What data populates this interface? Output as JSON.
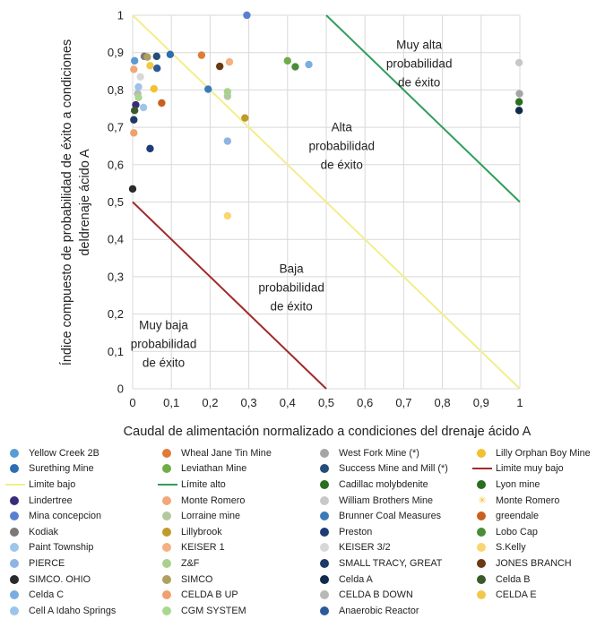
{
  "chart_data": {
    "type": "scatter",
    "title": "",
    "xlabel": "Caudal de alimentación normalizado a condiciones del drenaje ácido A",
    "ylabel_lines": [
      "Índice compuesto de probabilidad de éxito a condiciones",
      "deldrenaje ácido A"
    ],
    "xlim": [
      0,
      1
    ],
    "ylim": [
      0,
      1
    ],
    "xticks": [
      "0",
      "0,1",
      "0,2",
      "0,3",
      "0,4",
      "0,5",
      "0,6",
      "0,7",
      "0,8",
      "0,9",
      "1"
    ],
    "yticks": [
      "0",
      "0,1",
      "0,2",
      "0,3",
      "0,4",
      "0,5",
      "0,6",
      "0,7",
      "0,8",
      "0,9",
      "1"
    ],
    "grid": true,
    "legend_position": "bottom",
    "regions": [
      {
        "lines": [
          "Muy alta",
          "probabilidad",
          "de éxito"
        ],
        "x": 0.74,
        "y": 0.91
      },
      {
        "lines": [
          "Alta",
          "probabilidad",
          "de éxito"
        ],
        "x": 0.54,
        "y": 0.69
      },
      {
        "lines": [
          "Baja",
          "probabilidad",
          "de éxito"
        ],
        "x": 0.41,
        "y": 0.31
      },
      {
        "lines": [
          "Muy baja",
          "probabilidad",
          "de éxito"
        ],
        "x": 0.08,
        "y": 0.16
      }
    ],
    "lines": [
      {
        "name": "Limite bajo",
        "color": "#f2ee8c",
        "x": [
          0,
          1
        ],
        "y": [
          1,
          0
        ]
      },
      {
        "name": "Límite alto",
        "color": "#2e9e5a",
        "x": [
          0.5,
          1
        ],
        "y": [
          1,
          0.5
        ]
      },
      {
        "name": "Limite muy bajo",
        "color": "#a02a2a",
        "x": [
          0,
          0.5
        ],
        "y": [
          0.5,
          0
        ]
      }
    ],
    "series": [
      {
        "name": "Yellow Creek 2B",
        "color": "#5b9bd5",
        "points": [
          [
            0.005,
            0.878
          ]
        ]
      },
      {
        "name": "Wheal Jane Tin Mine",
        "color": "#e07b39",
        "points": [
          [
            0.178,
            0.893
          ]
        ]
      },
      {
        "name": "West Fork Mine (*)",
        "color": "#a5a5a5",
        "points": [
          [
            0.999,
            0.79
          ]
        ]
      },
      {
        "name": "Lilly Orphan Boy Mine",
        "color": "#f2c12e",
        "points": [
          [
            0.055,
            0.803
          ]
        ]
      },
      {
        "name": "Surething Mine",
        "color": "#2e6db4",
        "points": [
          [
            0.097,
            0.895
          ]
        ]
      },
      {
        "name": "Leviathan Mine",
        "color": "#70ad47",
        "points": [
          [
            0.4,
            0.878
          ]
        ]
      },
      {
        "name": "Success Mine and Mill (*)",
        "color": "#244d7a",
        "points": [
          [
            0.062,
            0.89
          ]
        ]
      },
      {
        "name": "Lindertree",
        "color": "#3a2a7a",
        "points": [
          [
            0.008,
            0.76
          ]
        ]
      },
      {
        "name": "Monte Romero",
        "color": "#f0a878",
        "points": [
          [
            0.003,
            0.855
          ]
        ]
      },
      {
        "name": "William Brothers Mine",
        "color": "#c8c8c8",
        "points": [
          [
            0.998,
            0.873
          ]
        ]
      },
      {
        "name": "Lyon mine",
        "color": "#2a6e1e",
        "points": [
          [
            0.998,
            0.768
          ]
        ]
      },
      {
        "name": "Mina concepcion",
        "color": "#5b7fd0",
        "points": [
          [
            0.295,
            1.0
          ]
        ]
      },
      {
        "name": "Lorraine mine",
        "color": "#b4c8a0",
        "points": [
          [
            0.245,
            0.783
          ]
        ]
      },
      {
        "name": "Brunner Coal Measures",
        "color": "#3a7ab8",
        "points": [
          [
            0.195,
            0.802
          ]
        ]
      },
      {
        "name": "greendale",
        "color": "#c8601e",
        "points": [
          [
            0.075,
            0.765
          ]
        ]
      },
      {
        "name": "Kodiak",
        "color": "#7a7a7a",
        "points": [
          [
            0.03,
            0.89
          ]
        ]
      },
      {
        "name": "Lillybrook",
        "color": "#c09a2a",
        "points": [
          [
            0.29,
            0.725
          ]
        ]
      },
      {
        "name": "Preston",
        "color": "#1e3c78",
        "points": [
          [
            0.045,
            0.643
          ]
        ]
      },
      {
        "name": "Lobo Cap",
        "color": "#4a8c3a",
        "points": [
          [
            0.42,
            0.862
          ]
        ]
      },
      {
        "name": "Paint Township",
        "color": "#9ec6e8",
        "points": [
          [
            0.028,
            0.753
          ]
        ]
      },
      {
        "name": "KEISER 1",
        "color": "#f4b183",
        "points": [
          [
            0.25,
            0.875
          ]
        ]
      },
      {
        "name": "KEISER 3/2",
        "color": "#d8d8d8",
        "points": [
          [
            0.02,
            0.835
          ]
        ]
      },
      {
        "name": "S.Kelly",
        "color": "#f8d670",
        "points": [
          [
            0.245,
            0.463
          ]
        ]
      },
      {
        "name": "PIERCE",
        "color": "#8fb4e3",
        "points": [
          [
            0.245,
            0.663
          ]
        ]
      },
      {
        "name": "Z&F",
        "color": "#a9d18e",
        "points": [
          [
            0.245,
            0.795
          ]
        ]
      },
      {
        "name": "SMALL TRACY, GREAT",
        "color": "#1c3a66",
        "points": [
          [
            0.003,
            0.72
          ]
        ]
      },
      {
        "name": "JONES BRANCH",
        "color": "#6b3a12",
        "points": [
          [
            0.225,
            0.863
          ]
        ]
      },
      {
        "name": "SIMCO. OHIO",
        "color": "#2a2a2a",
        "points": [
          [
            0.0,
            0.535
          ]
        ]
      },
      {
        "name": "SIMCO",
        "color": "#b0a060",
        "points": [
          [
            0.038,
            0.888
          ]
        ]
      },
      {
        "name": "Celda A",
        "color": "#0f2a4a",
        "points": [
          [
            0.998,
            0.745
          ]
        ]
      },
      {
        "name": "Celda B",
        "color": "#3a5a2a",
        "points": [
          [
            0.005,
            0.745
          ]
        ]
      },
      {
        "name": "Celda C",
        "color": "#7aaee0",
        "points": [
          [
            0.455,
            0.868
          ]
        ]
      },
      {
        "name": "CELDA B UP",
        "color": "#f0a070",
        "points": [
          [
            0.003,
            0.685
          ]
        ]
      },
      {
        "name": "CELDA  B DOWN",
        "color": "#b8b8b8",
        "points": [
          [
            0.013,
            0.79
          ]
        ]
      },
      {
        "name": "CELDA E",
        "color": "#f2c84a",
        "points": [
          [
            0.045,
            0.865
          ]
        ]
      },
      {
        "name": "Cell A Idaho Springs",
        "color": "#9cc3ea",
        "points": [
          [
            0.015,
            0.808
          ]
        ]
      },
      {
        "name": "CGM  SYSTEM",
        "color": "#a8d890",
        "points": [
          [
            0.015,
            0.78
          ]
        ]
      },
      {
        "name": "Anaerobic Reactor",
        "color": "#2a5a9a",
        "points": [
          [
            0.063,
            0.858
          ]
        ]
      }
    ]
  },
  "legend_rows": [
    [
      {
        "label": "Yellow Creek 2B",
        "color": "#5b9bd5",
        "kind": "dot"
      },
      {
        "label": "Wheal Jane Tin Mine",
        "color": "#e07b39",
        "kind": "dot"
      },
      {
        "label": "West Fork Mine (*)",
        "color": "#a5a5a5",
        "kind": "dot"
      },
      {
        "label": "Lilly Orphan Boy Mine",
        "color": "#f2c12e",
        "kind": "dot"
      }
    ],
    [
      {
        "label": "Surething Mine",
        "color": "#2e6db4",
        "kind": "dot"
      },
      {
        "label": "Leviathan Mine",
        "color": "#70ad47",
        "kind": "dot"
      },
      {
        "label": "Success Mine and Mill (*)",
        "color": "#244d7a",
        "kind": "dot"
      },
      {
        "label": "Limite muy bajo",
        "color": "#a02a2a",
        "kind": "line"
      }
    ],
    [
      {
        "label": "Limite bajo",
        "color": "#f2ee8c",
        "kind": "line"
      },
      {
        "label": "Límite alto",
        "color": "#2e9e5a",
        "kind": "line"
      },
      {
        "label": "Cadillac molybdenite",
        "color": "#2a6e1e",
        "kind": "dot"
      },
      {
        "label": "Lyon mine",
        "color": "#2a6e1e",
        "kind": "dot"
      }
    ],
    [
      {
        "label": "Lindertree",
        "color": "#3a2a7a",
        "kind": "dot"
      },
      {
        "label": "Monte Romero",
        "color": "#f0a878",
        "kind": "dot"
      },
      {
        "label": "William Brothers Mine",
        "color": "#c8c8c8",
        "kind": "dot"
      },
      {
        "label": "Monte Romero",
        "color": "#f2c12e",
        "kind": "star"
      }
    ],
    [
      {
        "label": "Mina concepcion",
        "color": "#5b7fd0",
        "kind": "dot"
      },
      {
        "label": "Lorraine mine",
        "color": "#b4c8a0",
        "kind": "dot"
      },
      {
        "label": "Brunner Coal Measures",
        "color": "#3a7ab8",
        "kind": "dot"
      },
      {
        "label": "greendale",
        "color": "#c8601e",
        "kind": "dot"
      }
    ],
    [
      {
        "label": "Kodiak",
        "color": "#7a7a7a",
        "kind": "dot"
      },
      {
        "label": "Lillybrook",
        "color": "#c09a2a",
        "kind": "dot"
      },
      {
        "label": "Preston",
        "color": "#1e3c78",
        "kind": "dot"
      },
      {
        "label": "Lobo Cap",
        "color": "#4a8c3a",
        "kind": "dot"
      }
    ],
    [
      {
        "label": "Paint Township",
        "color": "#9ec6e8",
        "kind": "dot"
      },
      {
        "label": "KEISER 1",
        "color": "#f4b183",
        "kind": "dot"
      },
      {
        "label": "KEISER 3/2",
        "color": "#d8d8d8",
        "kind": "dot"
      },
      {
        "label": "S.Kelly",
        "color": "#f8d670",
        "kind": "dot"
      }
    ],
    [
      {
        "label": "PIERCE",
        "color": "#8fb4e3",
        "kind": "dot"
      },
      {
        "label": "Z&F",
        "color": "#a9d18e",
        "kind": "dot"
      },
      {
        "label": "SMALL TRACY, GREAT",
        "color": "#1c3a66",
        "kind": "dot"
      },
      {
        "label": "JONES BRANCH",
        "color": "#6b3a12",
        "kind": "dot"
      }
    ],
    [
      {
        "label": "SIMCO. OHIO",
        "color": "#2a2a2a",
        "kind": "dot"
      },
      {
        "label": "SIMCO",
        "color": "#b0a060",
        "kind": "dot"
      },
      {
        "label": "Celda A",
        "color": "#0f2a4a",
        "kind": "dot"
      },
      {
        "label": "Celda B",
        "color": "#3a5a2a",
        "kind": "dot"
      }
    ],
    [
      {
        "label": "Celda C",
        "color": "#7aaee0",
        "kind": "dot"
      },
      {
        "label": "CELDA B UP",
        "color": "#f0a070",
        "kind": "dot"
      },
      {
        "label": "CELDA  B DOWN",
        "color": "#b8b8b8",
        "kind": "dot"
      },
      {
        "label": "CELDA E",
        "color": "#f2c84a",
        "kind": "dot"
      }
    ],
    [
      {
        "label": "Cell A Idaho Springs",
        "color": "#9cc3ea",
        "kind": "dot"
      },
      {
        "label": "CGM  SYSTEM",
        "color": "#a8d890",
        "kind": "dot"
      },
      {
        "label": "Anaerobic Reactor",
        "color": "#2a5a9a",
        "kind": "dot"
      }
    ]
  ]
}
